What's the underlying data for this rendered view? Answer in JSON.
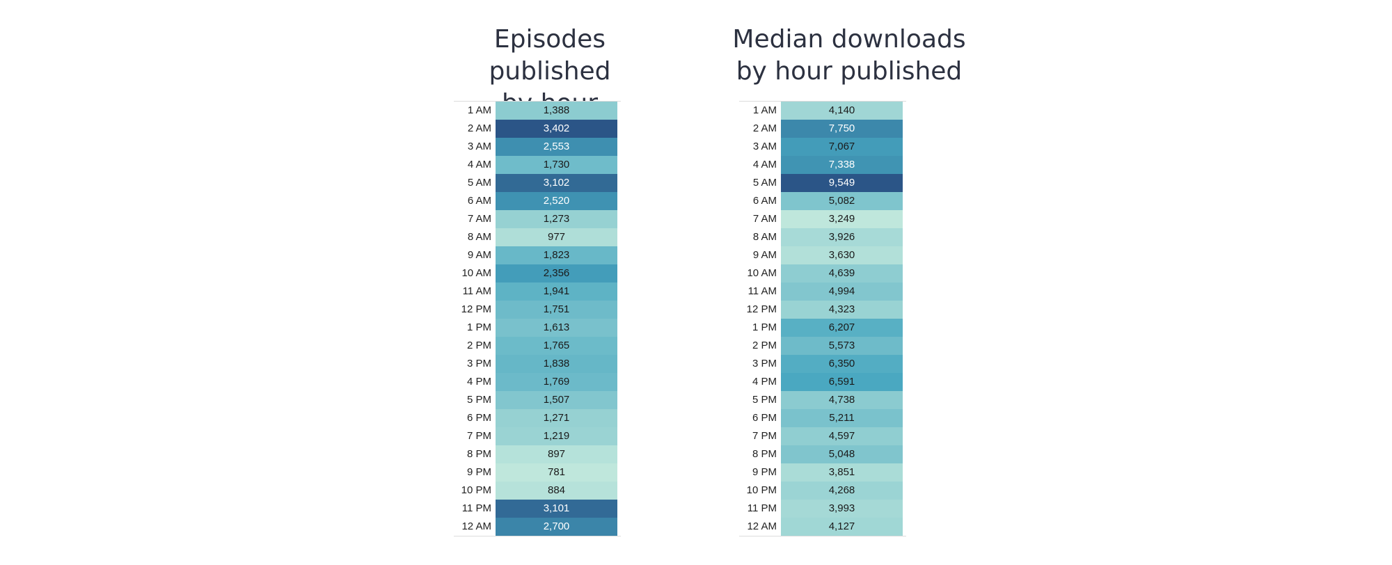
{
  "chart_data": [
    {
      "type": "heatmap",
      "id": "episodes",
      "title_lines": [
        "Episodes published",
        "by hour"
      ],
      "categories": [
        "1 AM",
        "2 AM",
        "3 AM",
        "4 AM",
        "5 AM",
        "6 AM",
        "7 AM",
        "8 AM",
        "9 AM",
        "10 AM",
        "11 AM",
        "12 PM",
        "1 PM",
        "2 PM",
        "3 PM",
        "4 PM",
        "5 PM",
        "6 PM",
        "7 PM",
        "8 PM",
        "9 PM",
        "10 PM",
        "11 PM",
        "12 AM"
      ],
      "values": [
        1388,
        3402,
        2553,
        1730,
        3102,
        2520,
        1273,
        977,
        1823,
        2356,
        1941,
        1751,
        1613,
        1765,
        1838,
        1769,
        1507,
        1271,
        1219,
        897,
        781,
        884,
        3101,
        2700
      ],
      "value_labels": [
        "1,388",
        "3,402",
        "2,553",
        "1,730",
        "3,102",
        "2,520",
        "1,273",
        "977",
        "1,823",
        "2,356",
        "1,941",
        "1,751",
        "1,613",
        "1,765",
        "1,838",
        "1,769",
        "1,507",
        "1,271",
        "1,219",
        "897",
        "781",
        "884",
        "3,101",
        "2,700"
      ]
    },
    {
      "type": "heatmap",
      "id": "downloads",
      "title_lines": [
        "Median downloads",
        "by hour published"
      ],
      "categories": [
        "1 AM",
        "2 AM",
        "3 AM",
        "4 AM",
        "5 AM",
        "6 AM",
        "7 AM",
        "8 AM",
        "9 AM",
        "10 AM",
        "11 AM",
        "12 PM",
        "1 PM",
        "2 PM",
        "3 PM",
        "4 PM",
        "5 PM",
        "6 PM",
        "7 PM",
        "8 PM",
        "9 PM",
        "10 PM",
        "11 PM",
        "12 AM"
      ],
      "values": [
        4140,
        7750,
        7067,
        7338,
        9549,
        5082,
        3249,
        3926,
        3630,
        4639,
        4994,
        4323,
        6207,
        5573,
        6350,
        6591,
        4738,
        5211,
        4597,
        5048,
        3851,
        4268,
        3993,
        4127
      ],
      "value_labels": [
        "4,140",
        "7,750",
        "7,067",
        "7,338",
        "9,549",
        "5,082",
        "3,249",
        "3,926",
        "3,630",
        "4,639",
        "4,994",
        "4,323",
        "6,207",
        "5,573",
        "6,350",
        "6,591",
        "4,738",
        "5,211",
        "4,597",
        "5,048",
        "3,851",
        "4,268",
        "3,993",
        "4,127"
      ]
    }
  ],
  "colors": {
    "scale_low": "#bfe7dc",
    "scale_mid": "#46a6c0",
    "scale_high": "#2b5587",
    "text_dark": "#1a1a1a",
    "text_light": "#ffffff",
    "title": "#2c3140"
  }
}
